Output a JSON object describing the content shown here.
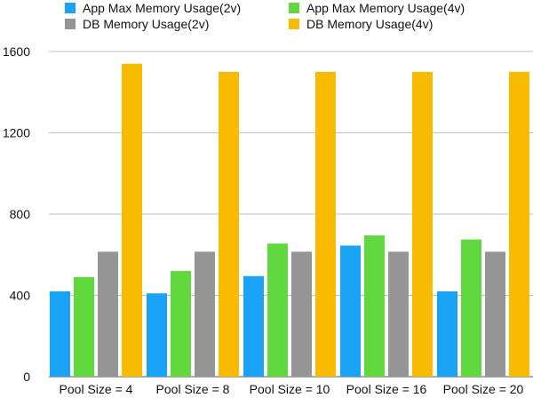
{
  "chart_data": {
    "type": "bar",
    "categories": [
      "Pool Size = 4",
      "Pool Size = 8",
      "Pool Size = 10",
      "Pool Size = 16",
      "Pool Size = 20"
    ],
    "series": [
      {
        "name": "App Max Memory Usage(2v)",
        "color": "#1aa3f5",
        "values": [
          420,
          410,
          495,
          645,
          420
        ]
      },
      {
        "name": "App Max Memory Usage(4v)",
        "color": "#62d83f",
        "values": [
          490,
          520,
          655,
          695,
          675
        ]
      },
      {
        "name": "DB Memory Usage(2v)",
        "color": "#959595",
        "values": [
          615,
          615,
          615,
          615,
          615
        ]
      },
      {
        "name": "DB Memory Usage(4v)",
        "color": "#f9bb00",
        "values": [
          1540,
          1500,
          1500,
          1500,
          1500
        ]
      }
    ],
    "yticks": [
      0,
      400,
      800,
      1200,
      1600
    ],
    "ylim": [
      0,
      1600
    ],
    "grid": true,
    "legend_position": "top",
    "title": "",
    "xlabel": "",
    "ylabel": ""
  }
}
